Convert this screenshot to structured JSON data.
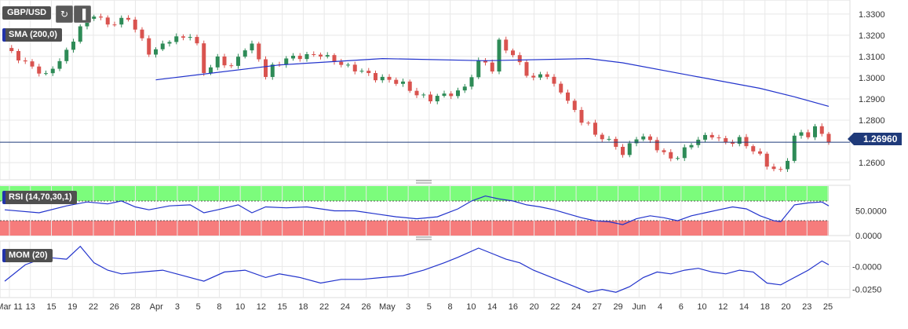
{
  "chart_data": {
    "type": "candlestick",
    "symbol": "GBP/USD",
    "indicators": [
      "SMA (200,0)",
      "RSI (14,70,30,1)",
      "MOM (20)"
    ],
    "last_price": "1.26960",
    "x_tick_labels": [
      "Mar 11",
      "13",
      "15",
      "19",
      "22",
      "26",
      "28",
      "Apr",
      "3",
      "5",
      "8",
      "10",
      "12",
      "15",
      "18",
      "22",
      "24",
      "26",
      "May",
      "3",
      "5",
      "8",
      "10",
      "14",
      "16",
      "20",
      "22",
      "24",
      "27",
      "29",
      "Jun",
      "4",
      "6",
      "10",
      "12",
      "14",
      "18",
      "20",
      "23",
      "25"
    ],
    "price_axis": {
      "ticks": [
        "1.3300",
        "1.3200",
        "1.3100",
        "1.3000",
        "1.2900",
        "1.2800",
        "1.2600"
      ],
      "ylim": [
        1.253,
        1.3355
      ]
    },
    "rsi_axis": {
      "ticks": [
        "50.0000",
        "0.0000"
      ],
      "overbought": 70,
      "oversold": 30
    },
    "mom_axis": {
      "ticks": [
        "-0.0000",
        "-0.0250"
      ]
    },
    "price_path": [
      [
        0,
        1.314
      ],
      [
        3,
        1.307
      ],
      [
        6,
        1.301
      ],
      [
        9,
        1.312
      ],
      [
        11,
        1.324
      ],
      [
        13,
        1.33
      ],
      [
        15,
        1.325
      ],
      [
        18,
        1.328
      ],
      [
        19,
        1.323
      ],
      [
        21,
        1.312
      ],
      [
        22,
        1.313
      ],
      [
        24,
        1.318
      ],
      [
        26,
        1.319
      ],
      [
        27,
        1.32
      ],
      [
        28,
        1.315
      ],
      [
        29,
        1.303
      ],
      [
        30,
        1.305
      ],
      [
        31,
        1.309
      ],
      [
        33,
        1.305
      ],
      [
        35,
        1.314
      ],
      [
        36,
        1.315
      ],
      [
        37,
        1.309
      ],
      [
        38,
        1.301
      ],
      [
        39,
        1.305
      ],
      [
        41,
        1.309
      ],
      [
        43,
        1.31
      ],
      [
        46,
        1.311
      ],
      [
        48,
        1.308
      ],
      [
        50,
        1.305
      ],
      [
        52,
        1.303
      ],
      [
        54,
        1.3
      ],
      [
        56,
        1.299
      ],
      [
        58,
        1.297
      ],
      [
        60,
        1.292
      ],
      [
        62,
        1.29
      ],
      [
        64,
        1.292
      ],
      [
        66,
        1.293
      ],
      [
        67,
        1.296
      ],
      [
        68,
        1.301
      ],
      [
        69,
        1.307
      ],
      [
        70,
        1.308
      ],
      [
        71,
        1.303
      ],
      [
        72,
        1.317
      ],
      [
        73,
        1.314
      ],
      [
        74,
        1.31
      ],
      [
        75,
        1.307
      ],
      [
        76,
        1.302
      ],
      [
        77,
        1.299
      ],
      [
        78,
        1.302
      ],
      [
        79,
        1.301
      ],
      [
        80,
        1.296
      ],
      [
        81,
        1.294
      ],
      [
        82,
        1.289
      ],
      [
        83,
        1.284
      ],
      [
        84,
        1.28
      ],
      [
        85,
        1.278
      ],
      [
        86,
        1.273
      ],
      [
        87,
        1.272
      ],
      [
        88,
        1.27
      ],
      [
        89,
        1.268
      ],
      [
        90,
        1.264
      ],
      [
        91,
        1.268
      ],
      [
        92,
        1.272
      ],
      [
        93,
        1.272
      ],
      [
        94,
        1.27
      ],
      [
        95,
        1.267
      ],
      [
        96,
        1.264
      ],
      [
        97,
        1.262
      ],
      [
        98,
        1.263
      ],
      [
        99,
        1.266
      ],
      [
        100,
        1.269
      ],
      [
        101,
        1.271
      ],
      [
        102,
        1.272
      ],
      [
        103,
        1.273
      ],
      [
        104,
        1.271
      ],
      [
        105,
        1.269
      ],
      [
        106,
        1.27
      ],
      [
        107,
        1.271
      ],
      [
        108,
        1.268
      ],
      [
        109,
        1.266
      ],
      [
        110,
        1.263
      ],
      [
        111,
        1.259
      ],
      [
        112,
        1.257
      ],
      [
        113,
        1.256
      ],
      [
        114,
        1.262
      ],
      [
        115,
        1.272
      ],
      [
        116,
        1.274
      ],
      [
        117,
        1.273
      ],
      [
        118,
        1.276
      ],
      [
        119,
        1.274
      ],
      [
        120,
        1.27
      ]
    ],
    "sma200": [
      [
        22,
        1.299
      ],
      [
        40,
        1.306
      ],
      [
        55,
        1.309
      ],
      [
        70,
        1.308
      ],
      [
        85,
        1.309
      ],
      [
        90,
        1.307
      ],
      [
        100,
        1.301
      ],
      [
        110,
        1.295
      ],
      [
        115,
        1.291
      ],
      [
        120,
        1.2865
      ]
    ],
    "rsi": [
      [
        0,
        52
      ],
      [
        5,
        46
      ],
      [
        9,
        60
      ],
      [
        12,
        68
      ],
      [
        15,
        64
      ],
      [
        17,
        70
      ],
      [
        19,
        58
      ],
      [
        21,
        52
      ],
      [
        24,
        60
      ],
      [
        27,
        62
      ],
      [
        29,
        46
      ],
      [
        31,
        52
      ],
      [
        34,
        62
      ],
      [
        36,
        46
      ],
      [
        38,
        58
      ],
      [
        41,
        56
      ],
      [
        44,
        58
      ],
      [
        46,
        54
      ],
      [
        48,
        50
      ],
      [
        51,
        50
      ],
      [
        54,
        44
      ],
      [
        57,
        38
      ],
      [
        60,
        34
      ],
      [
        63,
        38
      ],
      [
        66,
        54
      ],
      [
        68,
        70
      ],
      [
        70,
        80
      ],
      [
        72,
        74
      ],
      [
        74,
        70
      ],
      [
        76,
        62
      ],
      [
        78,
        58
      ],
      [
        80,
        52
      ],
      [
        82,
        44
      ],
      [
        84,
        36
      ],
      [
        86,
        30
      ],
      [
        88,
        28
      ],
      [
        90,
        22
      ],
      [
        92,
        34
      ],
      [
        94,
        40
      ],
      [
        96,
        36
      ],
      [
        98,
        30
      ],
      [
        100,
        40
      ],
      [
        102,
        46
      ],
      [
        104,
        52
      ],
      [
        106,
        58
      ],
      [
        108,
        54
      ],
      [
        110,
        40
      ],
      [
        112,
        30
      ],
      [
        113,
        28
      ],
      [
        115,
        62
      ],
      [
        117,
        66
      ],
      [
        119,
        68
      ],
      [
        120,
        60
      ]
    ],
    "mom": [
      [
        0,
        -0.016
      ],
      [
        3,
        0.002
      ],
      [
        6,
        0.01
      ],
      [
        9,
        0.008
      ],
      [
        11,
        0.022
      ],
      [
        13,
        0.004
      ],
      [
        15,
        -0.004
      ],
      [
        17,
        -0.008
      ],
      [
        20,
        -0.006
      ],
      [
        23,
        -0.004
      ],
      [
        26,
        -0.01
      ],
      [
        29,
        -0.016
      ],
      [
        32,
        -0.006
      ],
      [
        35,
        -0.004
      ],
      [
        38,
        -0.012
      ],
      [
        40,
        -0.008
      ],
      [
        43,
        -0.012
      ],
      [
        46,
        -0.018
      ],
      [
        49,
        -0.014
      ],
      [
        52,
        -0.014
      ],
      [
        55,
        -0.012
      ],
      [
        58,
        -0.01
      ],
      [
        61,
        -0.004
      ],
      [
        64,
        0.004
      ],
      [
        66,
        0.01
      ],
      [
        69,
        0.02
      ],
      [
        71,
        0.014
      ],
      [
        73,
        0.008
      ],
      [
        75,
        0.004
      ],
      [
        77,
        -0.004
      ],
      [
        79,
        -0.01
      ],
      [
        81,
        -0.016
      ],
      [
        83,
        -0.022
      ],
      [
        85,
        -0.028
      ],
      [
        87,
        -0.025
      ],
      [
        89,
        -0.028
      ],
      [
        91,
        -0.022
      ],
      [
        93,
        -0.012
      ],
      [
        95,
        -0.006
      ],
      [
        97,
        -0.008
      ],
      [
        99,
        -0.004
      ],
      [
        101,
        -0.002
      ],
      [
        103,
        -0.006
      ],
      [
        105,
        -0.008
      ],
      [
        107,
        -0.004
      ],
      [
        109,
        -0.006
      ],
      [
        111,
        -0.018
      ],
      [
        113,
        -0.02
      ],
      [
        115,
        -0.012
      ],
      [
        117,
        -0.004
      ],
      [
        119,
        0.006
      ],
      [
        120,
        0.002
      ]
    ],
    "colors": {
      "bull": "#2e8b57",
      "bear": "#d9534f",
      "sma": "#2233cc",
      "rsi": "#2233cc",
      "mom": "#2233cc",
      "last_line": "#1f3a7a",
      "ob_zone": "#7CFC7C",
      "os_zone": "#F67C7C",
      "grid": "#e8e8e8"
    }
  }
}
